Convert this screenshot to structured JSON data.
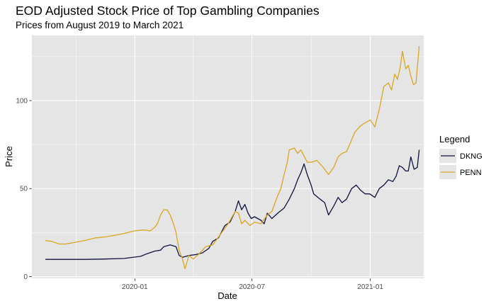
{
  "chart_data": {
    "type": "line",
    "title": "EOD Adjusted Stock Price of Top Gambling Companies",
    "subtitle": "Prices from August 2019 to March 2021",
    "xlabel": "Date",
    "ylabel": "Price",
    "xlim": [
      "2019-07-25",
      "2021-03-25"
    ],
    "ylim": [
      -1,
      137
    ],
    "x_ticks": [
      {
        "date": "2020-01-01",
        "label": "2020-01"
      },
      {
        "date": "2020-07-01",
        "label": "2020-07"
      },
      {
        "date": "2021-01-01",
        "label": "2021-01"
      }
    ],
    "y_ticks": [
      0,
      50,
      100
    ],
    "grid": true,
    "legend": {
      "title": "Legend",
      "position": "right"
    },
    "colors": {
      "panel": "#e5e5e5",
      "grid": "#ffffff",
      "DKNG": "#0f1242",
      "PENN": "#daa520"
    },
    "series": [
      {
        "name": "DKNG",
        "points": [
          [
            "2019-08-15",
            9.8
          ],
          [
            "2019-09-15",
            9.8
          ],
          [
            "2019-10-15",
            9.8
          ],
          [
            "2019-11-15",
            10.0
          ],
          [
            "2019-12-15",
            10.3
          ],
          [
            "2020-01-10",
            11.5
          ],
          [
            "2020-01-20",
            13.0
          ],
          [
            "2020-02-01",
            14.5
          ],
          [
            "2020-02-10",
            15.0
          ],
          [
            "2020-02-15",
            17.0
          ],
          [
            "2020-02-25",
            18.0
          ],
          [
            "2020-03-05",
            17.0
          ],
          [
            "2020-03-10",
            12.0
          ],
          [
            "2020-03-15",
            11.0
          ],
          [
            "2020-03-25",
            12.0
          ],
          [
            "2020-04-05",
            12.5
          ],
          [
            "2020-04-15",
            13.5
          ],
          [
            "2020-04-25",
            16.0
          ],
          [
            "2020-05-01",
            20.0
          ],
          [
            "2020-05-10",
            22.0
          ],
          [
            "2020-05-20",
            29.0
          ],
          [
            "2020-05-28",
            31.0
          ],
          [
            "2020-06-05",
            37.0
          ],
          [
            "2020-06-10",
            43.0
          ],
          [
            "2020-06-15",
            38.0
          ],
          [
            "2020-06-20",
            41.0
          ],
          [
            "2020-06-25",
            36.0
          ],
          [
            "2020-06-30",
            33.0
          ],
          [
            "2020-07-05",
            34.0
          ],
          [
            "2020-07-10",
            33.0
          ],
          [
            "2020-07-15",
            32.0
          ],
          [
            "2020-07-20",
            30.0
          ],
          [
            "2020-07-25",
            36.0
          ],
          [
            "2020-08-01",
            33.0
          ],
          [
            "2020-08-10",
            36.0
          ],
          [
            "2020-08-20",
            39.0
          ],
          [
            "2020-08-28",
            44.0
          ],
          [
            "2020-09-05",
            50.0
          ],
          [
            "2020-09-10",
            55.0
          ],
          [
            "2020-09-15",
            59.0
          ],
          [
            "2020-09-20",
            64.0
          ],
          [
            "2020-09-25",
            58.0
          ],
          [
            "2020-10-01",
            52.0
          ],
          [
            "2020-10-05",
            47.0
          ],
          [
            "2020-10-15",
            44.0
          ],
          [
            "2020-10-22",
            42.0
          ],
          [
            "2020-10-28",
            35.0
          ],
          [
            "2020-11-05",
            40.0
          ],
          [
            "2020-11-12",
            45.0
          ],
          [
            "2020-11-18",
            42.0
          ],
          [
            "2020-11-25",
            44.0
          ],
          [
            "2020-12-03",
            50.0
          ],
          [
            "2020-12-10",
            52.0
          ],
          [
            "2020-12-17",
            49.0
          ],
          [
            "2020-12-24",
            47.0
          ],
          [
            "2020-12-31",
            47.0
          ],
          [
            "2021-01-08",
            45.0
          ],
          [
            "2021-01-15",
            50.0
          ],
          [
            "2021-01-22",
            52.0
          ],
          [
            "2021-01-29",
            55.0
          ],
          [
            "2021-02-05",
            54.0
          ],
          [
            "2021-02-10",
            57.0
          ],
          [
            "2021-02-15",
            63.0
          ],
          [
            "2021-02-20",
            62.0
          ],
          [
            "2021-02-25",
            60.0
          ],
          [
            "2021-03-01",
            60.0
          ],
          [
            "2021-03-05",
            68.0
          ],
          [
            "2021-03-10",
            61.0
          ],
          [
            "2021-03-15",
            62.0
          ],
          [
            "2021-03-18",
            72.0
          ]
        ]
      },
      {
        "name": "PENN",
        "points": [
          [
            "2019-08-15",
            20.5
          ],
          [
            "2019-08-25",
            20.0
          ],
          [
            "2019-09-05",
            18.5
          ],
          [
            "2019-09-15",
            18.5
          ],
          [
            "2019-10-01",
            19.5
          ],
          [
            "2019-10-15",
            20.5
          ],
          [
            "2019-11-01",
            22.0
          ],
          [
            "2019-11-15",
            22.5
          ],
          [
            "2019-12-01",
            23.5
          ],
          [
            "2019-12-15",
            24.5
          ],
          [
            "2020-01-01",
            26.0
          ],
          [
            "2020-01-15",
            26.5
          ],
          [
            "2020-01-25",
            26.0
          ],
          [
            "2020-02-01",
            28.0
          ],
          [
            "2020-02-05",
            30.0
          ],
          [
            "2020-02-10",
            35.0
          ],
          [
            "2020-02-15",
            38.0
          ],
          [
            "2020-02-20",
            38.0
          ],
          [
            "2020-02-25",
            35.0
          ],
          [
            "2020-03-01",
            30.0
          ],
          [
            "2020-03-05",
            25.0
          ],
          [
            "2020-03-10",
            15.0
          ],
          [
            "2020-03-15",
            10.0
          ],
          [
            "2020-03-19",
            4.5
          ],
          [
            "2020-03-25",
            12.0
          ],
          [
            "2020-04-01",
            10.0
          ],
          [
            "2020-04-10",
            13.0
          ],
          [
            "2020-04-20",
            17.0
          ],
          [
            "2020-05-01",
            18.0
          ],
          [
            "2020-05-15",
            25.0
          ],
          [
            "2020-05-25",
            30.0
          ],
          [
            "2020-06-05",
            37.0
          ],
          [
            "2020-06-10",
            36.0
          ],
          [
            "2020-06-15",
            30.0
          ],
          [
            "2020-06-20",
            32.0
          ],
          [
            "2020-06-28",
            29.0
          ],
          [
            "2020-07-05",
            31.0
          ],
          [
            "2020-07-15",
            30.0
          ],
          [
            "2020-07-25",
            35.0
          ],
          [
            "2020-08-01",
            37.0
          ],
          [
            "2020-08-10",
            46.0
          ],
          [
            "2020-08-15",
            50.0
          ],
          [
            "2020-08-20",
            58.0
          ],
          [
            "2020-08-25",
            65.0
          ],
          [
            "2020-08-28",
            72.0
          ],
          [
            "2020-09-05",
            73.0
          ],
          [
            "2020-09-10",
            70.0
          ],
          [
            "2020-09-15",
            72.0
          ],
          [
            "2020-09-25",
            65.0
          ],
          [
            "2020-10-01",
            65.0
          ],
          [
            "2020-10-10",
            66.0
          ],
          [
            "2020-10-20",
            62.0
          ],
          [
            "2020-10-28",
            58.0
          ],
          [
            "2020-11-05",
            62.0
          ],
          [
            "2020-11-12",
            68.0
          ],
          [
            "2020-11-18",
            70.0
          ],
          [
            "2020-11-25",
            71.0
          ],
          [
            "2020-12-01",
            76.0
          ],
          [
            "2020-12-08",
            82.0
          ],
          [
            "2020-12-15",
            85.0
          ],
          [
            "2020-12-22",
            87.0
          ],
          [
            "2021-01-01",
            89.0
          ],
          [
            "2021-01-08",
            85.0
          ],
          [
            "2021-01-15",
            95.0
          ],
          [
            "2021-01-22",
            108.0
          ],
          [
            "2021-01-29",
            110.0
          ],
          [
            "2021-02-03",
            106.0
          ],
          [
            "2021-02-08",
            115.0
          ],
          [
            "2021-02-12",
            112.0
          ],
          [
            "2021-02-16",
            118.0
          ],
          [
            "2021-02-20",
            128.0
          ],
          [
            "2021-02-25",
            118.0
          ],
          [
            "2021-03-01",
            120.0
          ],
          [
            "2021-03-05",
            114.0
          ],
          [
            "2021-03-09",
            109.0
          ],
          [
            "2021-03-13",
            110.0
          ],
          [
            "2021-03-18",
            131.0
          ]
        ]
      }
    ]
  }
}
